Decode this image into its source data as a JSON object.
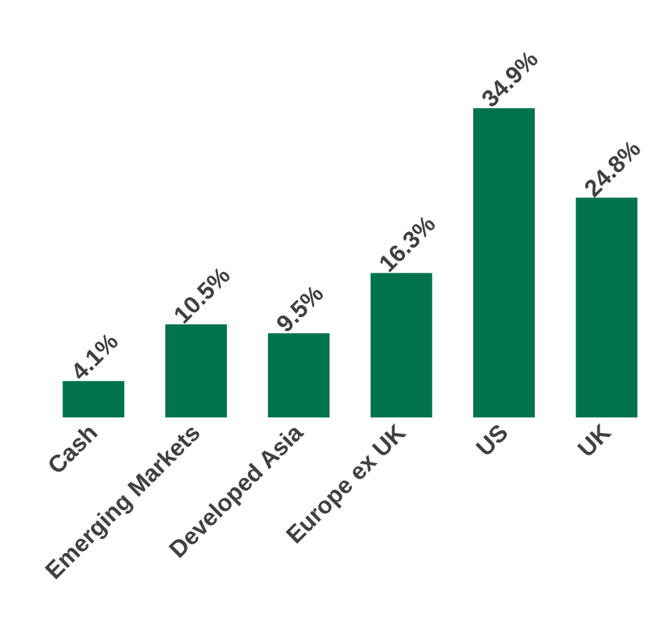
{
  "chart_data": {
    "type": "bar",
    "categories": [
      "Cash",
      "Emerging Markets",
      "Developed Asia",
      "Europe ex UK",
      "US",
      "UK"
    ],
    "values": [
      4.1,
      10.5,
      9.5,
      16.3,
      34.9,
      24.8
    ],
    "value_labels": [
      "4.1%",
      "10.5%",
      "9.5%",
      "16.3%",
      "34.9%",
      "24.8%"
    ],
    "color": "#00734a"
  }
}
